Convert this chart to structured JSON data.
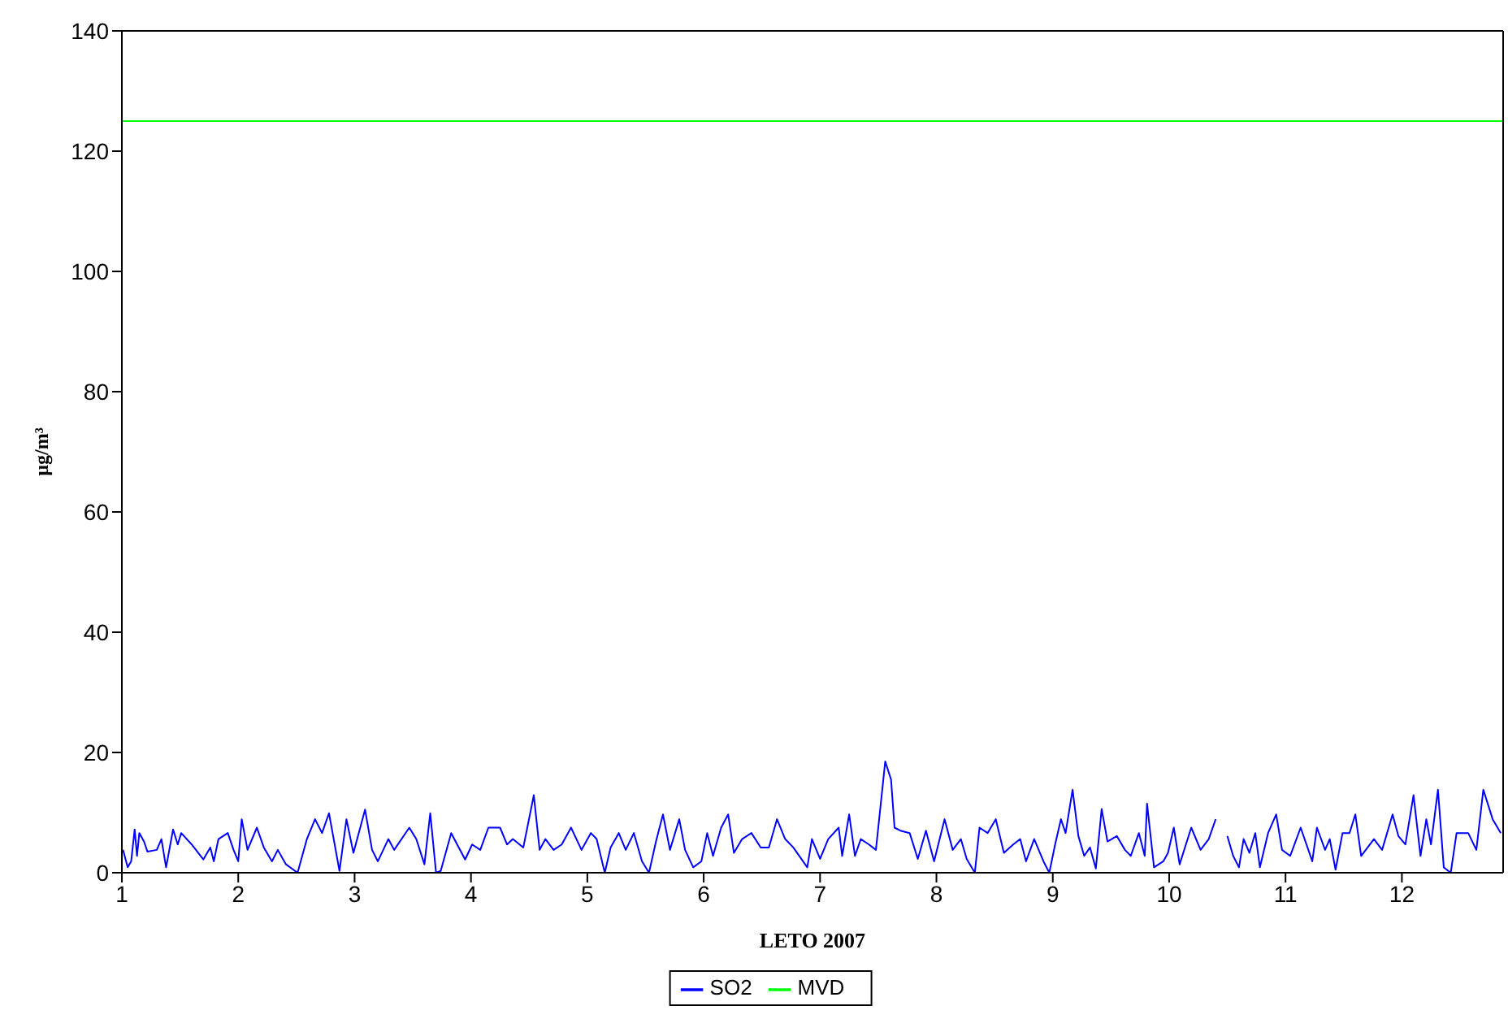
{
  "chart_data": {
    "type": "line",
    "xlabel": "LETO 2007",
    "ylabel": "µg/m³",
    "xlim": [
      1,
      12.87
    ],
    "xticks": [
      1,
      2,
      3,
      4,
      5,
      6,
      7,
      8,
      9,
      10,
      11,
      12
    ],
    "ylim": [
      0,
      140
    ],
    "yticks": [
      0,
      20,
      40,
      60,
      80,
      100,
      120,
      140
    ],
    "legend": "bottom",
    "marker": "none",
    "line_style": "solid",
    "series": [
      {
        "name": "SO2",
        "color": "#0000ff",
        "x": [
          1.01,
          1.05,
          1.08,
          1.11,
          1.13,
          1.15,
          1.19,
          1.22,
          1.3,
          1.34,
          1.38,
          1.44,
          1.48,
          1.51,
          1.6,
          1.7,
          1.76,
          1.79,
          1.83,
          1.91,
          1.96,
          2.0,
          2.03,
          2.08,
          2.16,
          2.22,
          2.29,
          2.34,
          2.41,
          2.51,
          2.59,
          2.66,
          2.72,
          2.78,
          2.87,
          2.93,
          2.99,
          3.09,
          3.15,
          3.2,
          3.29,
          3.34,
          3.47,
          3.53,
          3.6,
          3.65,
          3.7,
          3.74,
          3.83,
          3.95,
          4.01,
          4.08,
          4.15,
          4.25,
          4.31,
          4.36,
          4.45,
          4.54,
          4.59,
          4.64,
          4.71,
          4.78,
          4.86,
          4.95,
          5.03,
          5.08,
          5.15,
          5.2,
          5.27,
          5.33,
          5.4,
          5.47,
          5.53,
          5.59,
          5.65,
          5.71,
          5.79,
          5.84,
          5.91,
          5.98,
          6.03,
          6.08,
          6.15,
          6.21,
          6.26,
          6.33,
          6.41,
          6.49,
          6.56,
          6.63,
          6.7,
          6.77,
          6.89,
          6.93,
          7.0,
          7.07,
          7.16,
          7.19,
          7.25,
          7.3,
          7.35,
          7.42,
          7.48,
          7.56,
          7.61,
          7.64,
          7.69,
          7.77,
          7.84,
          7.91,
          7.98,
          8.07,
          8.14,
          8.21,
          8.26,
          8.33,
          8.37,
          8.44,
          8.51,
          8.58,
          8.66,
          8.72,
          8.77,
          8.84,
          8.92,
          8.97,
          9.02,
          9.07,
          9.11,
          9.17,
          9.22,
          9.27,
          9.32,
          9.37,
          9.42,
          9.47,
          9.55,
          9.62,
          9.67,
          9.74,
          9.79,
          9.81,
          9.87,
          9.95,
          9.99,
          10.04,
          10.09,
          10.19,
          10.27,
          10.34,
          10.4,
          10.45,
          10.5,
          10.55,
          10.6,
          10.64,
          10.69,
          10.74,
          10.78,
          10.85,
          10.92,
          10.97,
          11.04,
          11.13,
          11.23,
          11.27,
          11.34,
          11.38,
          11.43,
          11.49,
          11.55,
          11.6,
          11.65,
          11.76,
          11.83,
          11.92,
          11.97,
          12.03,
          12.1,
          12.16,
          12.21,
          12.25,
          12.31,
          12.36,
          12.42,
          12.47,
          12.57,
          12.64,
          12.7,
          12.78,
          12.85
        ],
        "values": [
          3.8,
          0.9,
          1.9,
          7.2,
          2.8,
          6.6,
          5.2,
          3.5,
          3.8,
          5.6,
          0.9,
          7.2,
          4.7,
          6.6,
          4.7,
          2.2,
          4.2,
          1.9,
          5.6,
          6.6,
          3.8,
          1.9,
          8.9,
          3.8,
          7.5,
          4.2,
          1.9,
          3.8,
          1.4,
          0,
          5.6,
          8.9,
          6.6,
          9.9,
          0.3,
          8.9,
          3.3,
          10.5,
          3.8,
          1.9,
          5.6,
          3.8,
          7.5,
          5.6,
          1.4,
          9.9,
          0,
          0.3,
          6.6,
          2.2,
          4.7,
          3.8,
          7.5,
          7.5,
          4.7,
          5.6,
          4.2,
          12.9,
          3.8,
          5.6,
          3.8,
          4.7,
          7.5,
          3.8,
          6.6,
          5.6,
          0,
          4.2,
          6.6,
          3.8,
          6.6,
          1.9,
          0,
          5.2,
          9.7,
          3.8,
          8.9,
          3.8,
          0.9,
          1.9,
          6.6,
          2.8,
          7.5,
          9.7,
          3.3,
          5.6,
          6.6,
          4.2,
          4.2,
          8.9,
          5.6,
          4.2,
          0.9,
          5.6,
          2.3,
          5.6,
          7.5,
          2.8,
          9.7,
          2.8,
          5.6,
          4.7,
          3.8,
          18.5,
          15.5,
          7.5,
          7.0,
          6.6,
          2.3,
          7.0,
          1.9,
          8.9,
          3.8,
          5.6,
          2.3,
          0,
          7.5,
          6.6,
          8.9,
          3.3,
          4.7,
          5.6,
          1.9,
          5.6,
          1.9,
          0,
          4.7,
          8.9,
          6.6,
          13.8,
          6.1,
          2.8,
          4.2,
          0.7,
          10.6,
          5.2,
          6.1,
          3.8,
          2.8,
          6.6,
          2.8,
          11.5,
          0.9,
          1.9,
          3.3,
          7.5,
          1.4,
          7.5,
          3.8,
          5.6,
          8.9,
          null,
          6.1,
          2.8,
          0.9,
          5.6,
          3.3,
          6.6,
          0.9,
          6.6,
          9.7,
          3.8,
          2.8,
          7.5,
          1.9,
          7.5,
          3.8,
          5.6,
          0.5,
          6.6,
          6.6,
          9.7,
          2.8,
          5.6,
          3.8,
          9.7,
          6.1,
          4.7,
          12.9,
          2.8,
          8.9,
          4.7,
          13.8,
          0.9,
          0,
          6.6,
          6.6,
          3.8,
          13.8,
          8.9,
          6.6
        ]
      },
      {
        "name": "MVD",
        "color": "#00ff00",
        "x": [
          1,
          12.87
        ],
        "values": [
          125,
          125
        ]
      }
    ]
  }
}
